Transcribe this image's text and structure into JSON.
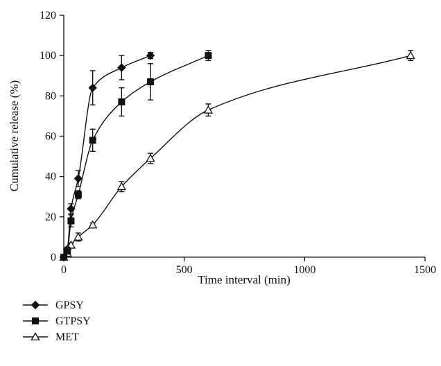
{
  "chart_data": {
    "type": "line",
    "xlabel": "Time interval (min)",
    "ylabel": "Cumulative release (%)",
    "xlim": [
      0,
      1500
    ],
    "ylim": [
      0,
      120
    ],
    "xticks": [
      0,
      500,
      1000,
      1500
    ],
    "yticks": [
      0,
      20,
      40,
      60,
      80,
      100,
      120
    ],
    "grid": false,
    "legend_position": "bottom-left",
    "error_bars": true,
    "series": [
      {
        "name": "GPSY",
        "marker": "filled-diamond",
        "x": [
          0,
          15,
          30,
          60,
          120,
          240,
          360
        ],
        "y": [
          0,
          4,
          24,
          39,
          84,
          94,
          100
        ],
        "err": [
          0,
          1,
          2.5,
          4,
          8.5,
          6,
          1.5
        ]
      },
      {
        "name": "GTPSY",
        "marker": "filled-square",
        "x": [
          0,
          15,
          30,
          60,
          120,
          240,
          360,
          600
        ],
        "y": [
          0,
          3,
          18,
          31,
          58,
          77,
          87,
          100
        ],
        "err": [
          0,
          1,
          3,
          2,
          5.5,
          7,
          9,
          2.5
        ]
      },
      {
        "name": "MET",
        "marker": "open-triangle",
        "x": [
          0,
          15,
          30,
          60,
          120,
          240,
          360,
          600,
          1440
        ],
        "y": [
          0,
          2,
          6,
          10,
          16,
          35,
          49,
          73,
          100
        ],
        "err": [
          0,
          0.5,
          1,
          2,
          1,
          2.5,
          2.5,
          3,
          2.5
        ]
      }
    ]
  }
}
